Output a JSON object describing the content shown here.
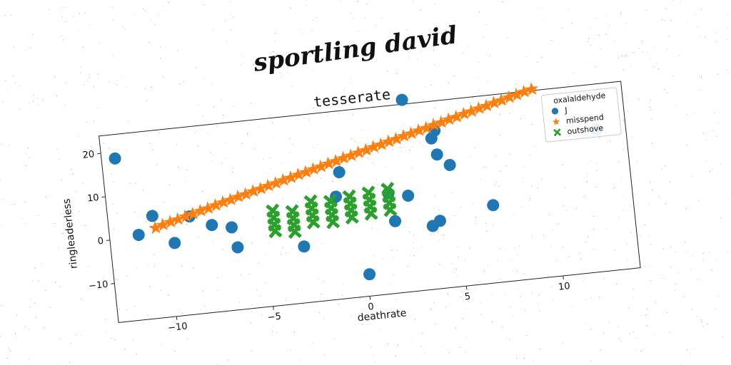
{
  "header": {
    "heading": "sportling david"
  },
  "chart_data": {
    "type": "scatter",
    "title": "tesserate",
    "xlabel": "deathrate",
    "ylabel": "ringleaderless",
    "xlim": [
      -13,
      14
    ],
    "ylim": [
      -19,
      24
    ],
    "xticks": [
      -10,
      -5,
      0,
      5,
      10
    ],
    "yticks": [
      -10,
      0,
      10,
      20
    ],
    "grid": false,
    "legend": {
      "title": "oxalaldehyde",
      "placement": "top-right"
    },
    "colors": {
      "J": "#1f77b4",
      "misspend": "#ff7f0e",
      "outshove": "#2ca02c"
    },
    "series": [
      {
        "name": "J",
        "marker": "circle",
        "points": [
          [
            -12.3,
            18.5
          ],
          [
            -11.5,
            0.5
          ],
          [
            -10.7,
            4.5
          ],
          [
            -9.7,
            -2.2
          ],
          [
            -8.8,
            3.5
          ],
          [
            -7.7,
            1.0
          ],
          [
            -6.7,
            0.0
          ],
          [
            -6.5,
            -4.7
          ],
          [
            -3.1,
            -6.1
          ],
          [
            -1.2,
            4.5
          ],
          [
            -0.9,
            10.0
          ],
          [
            0.1,
            -14.0
          ],
          [
            1.5,
            4.0
          ],
          [
            1.7,
            -2.5
          ],
          [
            2.5,
            3.0
          ],
          [
            2.7,
            25.0
          ],
          [
            3.6,
            -4.5
          ],
          [
            4.0,
            -3.5
          ],
          [
            4.0,
            15.5
          ],
          [
            4.2,
            17.2
          ],
          [
            4.2,
            11.7
          ],
          [
            4.8,
            9.0
          ],
          [
            6.8,
            -1.2
          ],
          [
            12.5,
            13.6
          ]
        ]
      },
      {
        "name": "misspend",
        "marker": "star",
        "points": [
          [
            -10.6,
            1.7
          ],
          [
            -10.2,
            2.2
          ],
          [
            -9.8,
            2.7
          ],
          [
            -9.4,
            3.1
          ],
          [
            -9.0,
            3.6
          ],
          [
            -8.6,
            4.0
          ],
          [
            -8.2,
            4.5
          ],
          [
            -7.8,
            4.9
          ],
          [
            -7.4,
            5.4
          ],
          [
            -7.0,
            5.9
          ],
          [
            -6.6,
            6.3
          ],
          [
            -6.2,
            6.8
          ],
          [
            -5.8,
            7.2
          ],
          [
            -5.4,
            7.7
          ],
          [
            -5.0,
            8.1
          ],
          [
            -4.6,
            8.6
          ],
          [
            -4.2,
            9.0
          ],
          [
            -3.8,
            9.5
          ],
          [
            -3.4,
            9.9
          ],
          [
            -3.0,
            10.4
          ],
          [
            -2.6,
            10.8
          ],
          [
            -2.2,
            11.3
          ],
          [
            -1.8,
            11.7
          ],
          [
            -1.4,
            12.2
          ],
          [
            -1.0,
            12.6
          ],
          [
            -0.6,
            13.1
          ],
          [
            -0.2,
            13.5
          ],
          [
            0.2,
            14.0
          ],
          [
            0.6,
            14.4
          ],
          [
            1.0,
            14.9
          ],
          [
            1.4,
            15.3
          ],
          [
            1.8,
            15.8
          ],
          [
            2.2,
            16.2
          ],
          [
            2.6,
            16.7
          ],
          [
            3.0,
            17.1
          ],
          [
            3.4,
            17.6
          ],
          [
            3.8,
            18.0
          ],
          [
            4.2,
            18.5
          ],
          [
            4.6,
            18.9
          ],
          [
            5.0,
            19.4
          ],
          [
            5.4,
            19.8
          ],
          [
            5.8,
            20.3
          ],
          [
            6.2,
            20.7
          ],
          [
            6.6,
            21.2
          ],
          [
            7.0,
            21.6
          ],
          [
            7.4,
            22.1
          ],
          [
            7.8,
            22.5
          ],
          [
            8.2,
            23.0
          ],
          [
            8.6,
            23.4
          ],
          [
            9.0,
            23.9
          ],
          [
            9.4,
            24.3
          ]
        ]
      },
      {
        "name": "outshove",
        "marker": "x",
        "points": [
          [
            -4.5,
            2.8
          ],
          [
            -4.5,
            1.2
          ],
          [
            -4.5,
            -0.4
          ],
          [
            -4.5,
            -1.9
          ],
          [
            -3.5,
            2.2
          ],
          [
            -3.5,
            0.6
          ],
          [
            -3.5,
            -1.0
          ],
          [
            -3.5,
            -2.5
          ],
          [
            -2.5,
            4.0
          ],
          [
            -2.5,
            2.4
          ],
          [
            -2.5,
            0.8
          ],
          [
            -2.5,
            -0.8
          ],
          [
            -1.5,
            3.6
          ],
          [
            -1.5,
            2.0
          ],
          [
            -1.5,
            0.4
          ],
          [
            -1.5,
            -1.2
          ],
          [
            -0.5,
            4.2
          ],
          [
            -0.5,
            2.6
          ],
          [
            -0.5,
            1.0
          ],
          [
            -0.5,
            -0.6
          ],
          [
            0.5,
            4.6
          ],
          [
            0.5,
            3.0
          ],
          [
            0.5,
            1.4
          ],
          [
            0.5,
            -0.2
          ],
          [
            1.5,
            5.0
          ],
          [
            1.5,
            3.4
          ],
          [
            1.5,
            1.8
          ],
          [
            1.5,
            0.2
          ]
        ]
      }
    ]
  }
}
